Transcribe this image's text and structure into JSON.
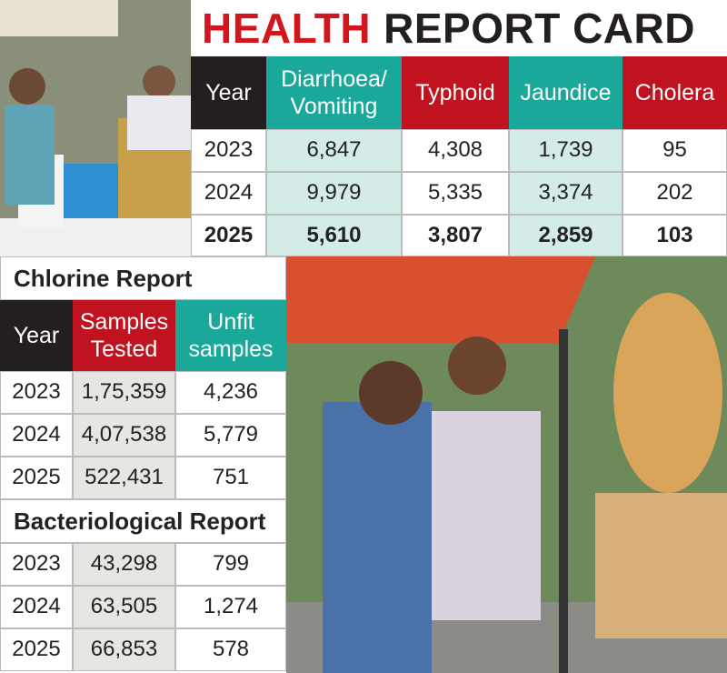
{
  "title_parts": [
    "HEALTH",
    "REPORT CARD"
  ],
  "health_table": {
    "header": [
      "Year",
      "Diarrhoea/ Vomiting",
      "Typhoid",
      "Jaundice",
      "Cholera"
    ],
    "rows": [
      [
        "2023",
        "6,847",
        "4,308",
        "1,739",
        "95"
      ],
      [
        "2024",
        "9,979",
        "5,335",
        "3,374",
        "202"
      ],
      [
        "2025",
        "5,610",
        "3,807",
        "2,859",
        "103"
      ]
    ]
  },
  "chlorine_report": {
    "title": "Chlorine Report",
    "header": [
      "Year",
      "Samples Tested",
      "Unfit samples"
    ],
    "rows": [
      [
        "2023",
        "1,75,359",
        "4,236"
      ],
      [
        "2024",
        "4,07,538",
        "5,779"
      ],
      [
        "2025",
        "522,431",
        "751"
      ]
    ]
  },
  "bacteriological_report": {
    "title": "Bacteriological Report",
    "rows": [
      [
        "2023",
        "43,298",
        "799"
      ],
      [
        "2024",
        "63,505",
        "1,274"
      ],
      [
        "2025",
        "66,853",
        "578"
      ]
    ]
  }
}
